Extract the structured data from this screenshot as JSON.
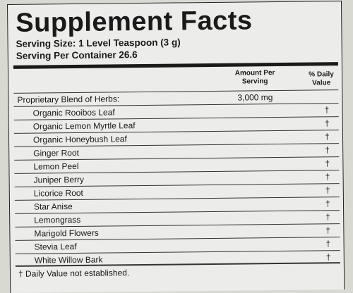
{
  "title": "Supplement Facts",
  "serving_size": "Serving Size: 1 Level Teaspoon (3 g)",
  "servings_per_container": "Serving Per Container 26.6",
  "columns": {
    "amount": "Amount Per Serving",
    "daily_value": "% Daily Value"
  },
  "blend": {
    "label": "Proprietary Blend of Herbs:",
    "amount": "3,000 mg"
  },
  "ingredients": [
    {
      "name": "Organic Rooibos Leaf",
      "dv": "†"
    },
    {
      "name": "Organic Lemon Myrtle Leaf",
      "dv": "†"
    },
    {
      "name": "Organic Honeybush Leaf",
      "dv": "†"
    },
    {
      "name": "Ginger Root",
      "dv": "†"
    },
    {
      "name": "Lemon Peel",
      "dv": "†"
    },
    {
      "name": "Juniper Berry",
      "dv": "†"
    },
    {
      "name": "Licorice Root",
      "dv": "†"
    },
    {
      "name": "Star Anise",
      "dv": "†"
    },
    {
      "name": "Lemongrass",
      "dv": "†"
    },
    {
      "name": "Marigold Flowers",
      "dv": "†"
    },
    {
      "name": "Stevia Leaf",
      "dv": "†"
    },
    {
      "name": "White Willow Bark",
      "dv": "†"
    }
  ],
  "footnote": "† Daily Value not established."
}
